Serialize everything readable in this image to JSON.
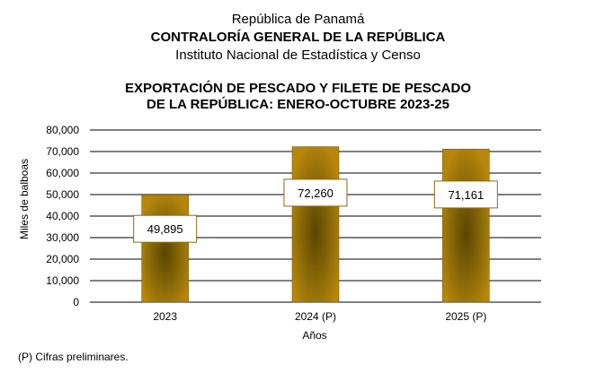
{
  "header": {
    "line1": "República de Panamá",
    "line2": "CONTRALORÍA GENERAL DE LA REPÚBLICA",
    "line3": "Instituto  Nacional de Estadística  y  Censo"
  },
  "footnote": "(P) Cifras  preliminares.",
  "chart_data": {
    "type": "bar",
    "title": [
      "EXPORTACIÓN DE PESCADO Y FILETE DE PESCADO",
      "DE LA REPÚBLICA: ENERO-OCTUBRE 2023-25"
    ],
    "xlabel": "Años",
    "ylabel": "Miles de balboas",
    "categories": [
      "2023",
      "2024 (P)",
      "2025 (P)"
    ],
    "values": [
      49895,
      72260,
      71161
    ],
    "data_labels": [
      "49,895",
      "72,260",
      "71,161"
    ],
    "ylim": [
      0,
      80000
    ],
    "yticks": [
      0,
      10000,
      20000,
      30000,
      40000,
      50000,
      60000,
      70000,
      80000
    ],
    "ytick_labels": [
      "0",
      "10,000",
      "20,000",
      "30,000",
      "40,000",
      "50,000",
      "60,000",
      "70,000",
      "80,000"
    ],
    "grid": true,
    "legend": "none",
    "colors": {
      "bar_edge": "#b8860b",
      "bar_center": "#5a4500",
      "label_border": "#8b6914"
    }
  }
}
